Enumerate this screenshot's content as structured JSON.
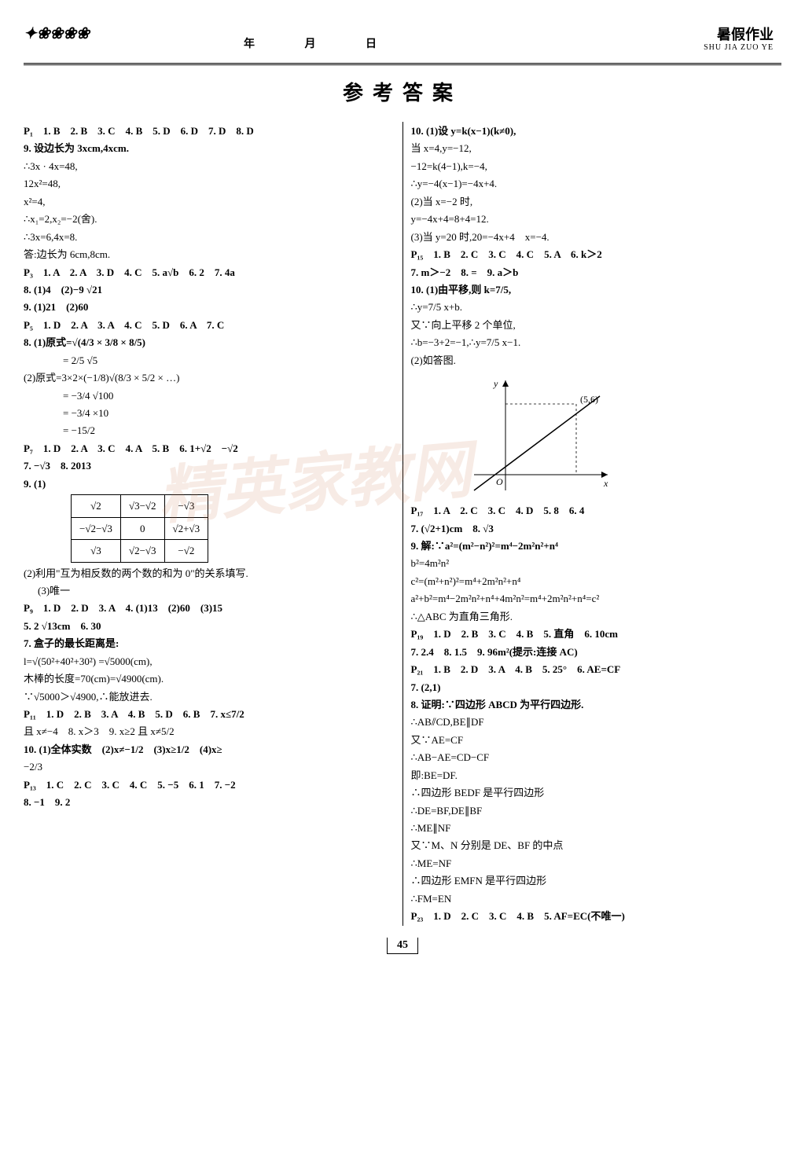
{
  "header": {
    "date_labels": "年 月 日",
    "right_title": "暑假作业",
    "pinyin": "SHU JIA ZUO YE"
  },
  "title": "参考答案",
  "footer": "45",
  "watermark": "精英家教网",
  "left_column": [
    {
      "t": "P₁　1. B　2. B　3. C　4. B　5. D　6. D　7. D　8. D",
      "b": true
    },
    {
      "t": "9. 设边长为 3xcm,4xcm.",
      "b": true
    },
    {
      "t": "∴3x · 4x=48,"
    },
    {
      "t": "12x²=48,"
    },
    {
      "t": "x²=4,"
    },
    {
      "t": "∴x₁=2,x₂=−2(舍)."
    },
    {
      "t": "∴3x=6,4x=8."
    },
    {
      "t": "答:边长为 6cm,8cm."
    },
    {
      "t": "P₃　1. A　2. A　3. D　4. C　5. a√b　6. 2　7. 4a",
      "b": true
    },
    {
      "t": "8. (1)4　(2)−9 √21",
      "b": true
    },
    {
      "t": "9. (1)21　(2)60",
      "b": true
    },
    {
      "t": "P₅　1. D　2. A　3. A　4. C　5. D　6. A　7. C",
      "b": true
    },
    {
      "t": "8. (1)原式=√(4/3 × 3/8 × 8/5)",
      "b": true
    },
    {
      "t": "= 2/5 √5",
      "i": 2
    },
    {
      "t": "(2)原式=3×2×(−1/8)√(8/3 × 5/2 × …)"
    },
    {
      "t": "= −3/4 √100",
      "i": 2
    },
    {
      "t": "= −3/4 ×10",
      "i": 2
    },
    {
      "t": "= −15/2",
      "i": 2
    },
    {
      "t": "P₇　1. D　2. A　3. C　4. A　5. B　6. 1+√2　−√2",
      "b": true
    },
    {
      "t": "7. −√3　8. 2013",
      "b": true
    },
    {
      "t": "9. (1)",
      "b": true
    },
    {
      "type": "table"
    },
    {
      "t": "(2)利用\"互为相反数的两个数的和为 0\"的关系填写."
    },
    {
      "t": "(3)唯一",
      "i": 1
    },
    {
      "t": "P₉　1. D　2. D　3. A　4. (1)13　(2)60　(3)15",
      "b": true
    },
    {
      "t": "5. 2 √13cm　6. 30",
      "b": true
    },
    {
      "t": "7. 盒子的最长距离是:",
      "b": true
    },
    {
      "t": "l=√(50²+40²+30²) =√5000(cm),"
    },
    {
      "t": "木棒的长度=70(cm)=√4900(cm)."
    },
    {
      "t": "∵√5000＞√4900,∴能放进去."
    },
    {
      "t": "P₁₁　1. D　2. B　3. A　4. B　5. D　6. B　7. x≤7/2",
      "b": true
    },
    {
      "t": "且 x≠−4　8. x＞3　9. x≥2 且 x≠5/2"
    },
    {
      "t": "10. (1)全体实数　(2)x≠−1/2　(3)x≥1/2　(4)x≥",
      "b": true
    },
    {
      "t": "−2/3"
    },
    {
      "t": "P₁₃　1. C　2. C　3. C　4. C　5. −5　6. 1　7. −2",
      "b": true
    },
    {
      "t": "8. −1　9. 2",
      "b": true
    }
  ],
  "table_9": {
    "rows": [
      [
        "√2",
        "√3−√2",
        "−√3"
      ],
      [
        "−√2−√3",
        "0",
        "√2+√3"
      ],
      [
        "√3",
        "√2−√3",
        "−√2"
      ]
    ]
  },
  "right_column": [
    {
      "t": "10. (1)设 y=k(x−1)(k≠0),",
      "b": true
    },
    {
      "t": "当 x=4,y=−12,"
    },
    {
      "t": "−12=k(4−1),k=−4,"
    },
    {
      "t": "∴y=−4(x−1)=−4x+4."
    },
    {
      "t": "(2)当 x=−2 时,"
    },
    {
      "t": "y=−4x+4=8+4=12."
    },
    {
      "t": "(3)当 y=20 时,20=−4x+4　x=−4."
    },
    {
      "t": "P₁₅　1. B　2. C　3. C　4. C　5. A　6. k＞2",
      "b": true
    },
    {
      "t": "7. m＞−2　8. =　9. a＞b",
      "b": true
    },
    {
      "t": "10. (1)由平移,则 k=7/5,",
      "b": true
    },
    {
      "t": "∴y=7/5 x+b."
    },
    {
      "t": "又∵向上平移 2 个单位,"
    },
    {
      "t": "∴b=−3+2=−1,∴y=7/5 x−1."
    },
    {
      "t": "(2)如答图."
    },
    {
      "type": "graph"
    },
    {
      "t": "P₁₇　1. A　2. C　3. C　4. D　5. 8　6. 4",
      "b": true
    },
    {
      "t": "7. (√2+1)cm　8. √3",
      "b": true
    },
    {
      "t": "9. 解:∵a²=(m²−n²)²=m⁴−2m²n²+n⁴",
      "b": true
    },
    {
      "t": "b²=4m²n²"
    },
    {
      "t": "c²=(m²+n²)²=m⁴+2m²n²+n⁴"
    },
    {
      "t": "a²+b²=m⁴−2m²n²+n⁴+4m²n²=m⁴+2m²n²+n⁴=c²"
    },
    {
      "t": "∴△ABC 为直角三角形."
    },
    {
      "t": "P₁₉　1. D　2. B　3. C　4. B　5. 直角　6. 10cm",
      "b": true
    },
    {
      "t": "7. 2.4　8. 1.5　9. 96m²(提示:连接 AC)",
      "b": true
    },
    {
      "t": "P₂₁　1. B　2. D　3. A　4. B　5. 25°　6. AE=CF",
      "b": true
    },
    {
      "t": "7. (2,1)",
      "b": true
    },
    {
      "t": "8. 证明:∵四边形 ABCD 为平行四边形.",
      "b": true
    },
    {
      "t": "∴AB⫽CD,BE∥DF"
    },
    {
      "t": "又∵AE=CF"
    },
    {
      "t": "∴AB−AE=CD−CF"
    },
    {
      "t": "即:BE=DF."
    },
    {
      "t": "∴四边形 BEDF 是平行四边形"
    },
    {
      "t": "∴DE=BF,DE∥BF"
    },
    {
      "t": "∴ME∥NF"
    },
    {
      "t": "又∵M、N 分别是 DE、BF 的中点"
    },
    {
      "t": "∴ME=NF"
    },
    {
      "t": "∴四边形 EMFN 是平行四边形"
    },
    {
      "t": "∴FM=EN"
    },
    {
      "t": "P₂₃　1. D　2. C　3. C　4. B　5. AF=EC(不唯一)",
      "b": true
    }
  ],
  "graph": {
    "point_label": "(5,6)",
    "x_label": "x",
    "y_label": "y",
    "origin": "O"
  }
}
